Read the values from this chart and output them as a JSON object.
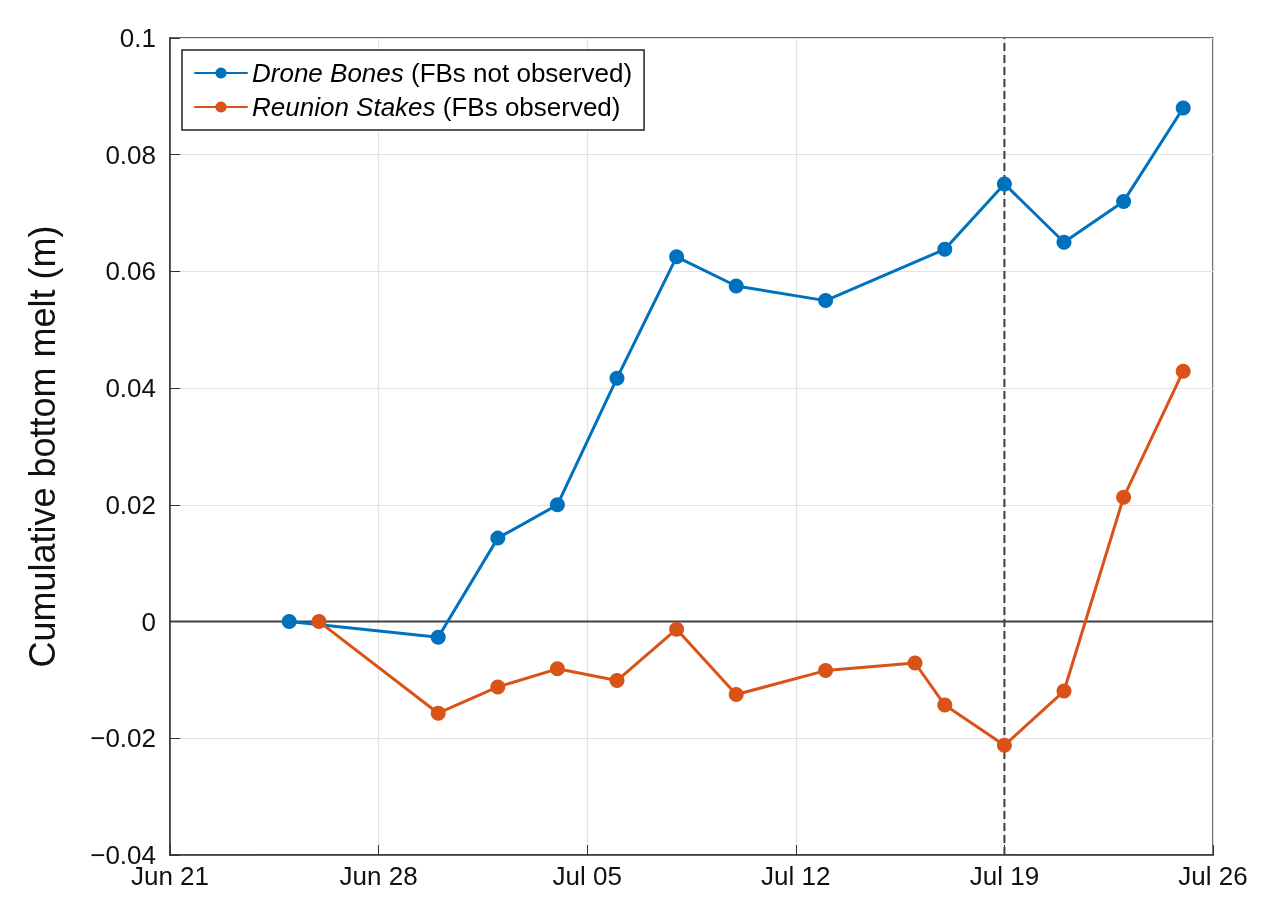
{
  "chart_data": {
    "type": "line",
    "ylabel": "Cumulative bottom melt (m)",
    "xlim": [
      "--06-21",
      "--07-26"
    ],
    "xticks": [
      {
        "value": "--06-21",
        "label": "Jun 21"
      },
      {
        "value": "--06-28",
        "label": "Jun 28"
      },
      {
        "value": "--07-05",
        "label": "Jul 05"
      },
      {
        "value": "--07-12",
        "label": "Jul 12"
      },
      {
        "value": "--07-19",
        "label": "Jul 19"
      },
      {
        "value": "--07-26",
        "label": "Jul 26"
      }
    ],
    "ylim": [
      -0.04,
      0.1
    ],
    "yticks": [
      {
        "value": -0.04,
        "label": "−0.04"
      },
      {
        "value": -0.02,
        "label": "−0.02"
      },
      0,
      0.02,
      0.04,
      0.06,
      0.08,
      0.1
    ],
    "series": [
      {
        "name": "Drone Bones (FBs not observed)",
        "color": "#0072bd",
        "x": [
          "--06-25",
          "--06-30",
          "--07-02",
          "--07-04",
          "--07-06",
          "--07-08",
          "--07-10",
          "--07-13",
          "--07-17",
          "--07-19",
          "--07-21",
          "--07-23",
          "--07-25"
        ],
        "values": [
          0,
          -0.0027,
          0.0143,
          0.02,
          0.0417,
          0.0625,
          0.0575,
          0.055,
          0.0638,
          0.075,
          0.065,
          0.072,
          0.088
        ]
      },
      {
        "name": "Reunion Stakes (FBs observed)",
        "color": "#d95319",
        "x": [
          "--06-26",
          "--06-30",
          "--07-02",
          "--07-04",
          "--07-06",
          "--07-08",
          "--07-10",
          "--07-13",
          "--07-16",
          "--07-17",
          "--07-19",
          "--07-21",
          "--07-23",
          "--07-25"
        ],
        "values": [
          0,
          -0.0157,
          -0.0112,
          -0.0081,
          -0.0101,
          -0.0013,
          -0.0125,
          -0.0084,
          -0.0071,
          -0.0143,
          -0.0212,
          -0.0119,
          0.0213,
          0.0429
        ]
      }
    ],
    "ref_lines": [
      {
        "axis": "y",
        "value": 0,
        "color": "#404040",
        "line_style": "solid"
      },
      {
        "axis": "x",
        "value": "--07-19",
        "color": "#404040",
        "line_style": "dashed"
      }
    ],
    "grid": true,
    "legend": "top left",
    "marker": "circle",
    "line_style": "solid"
  }
}
